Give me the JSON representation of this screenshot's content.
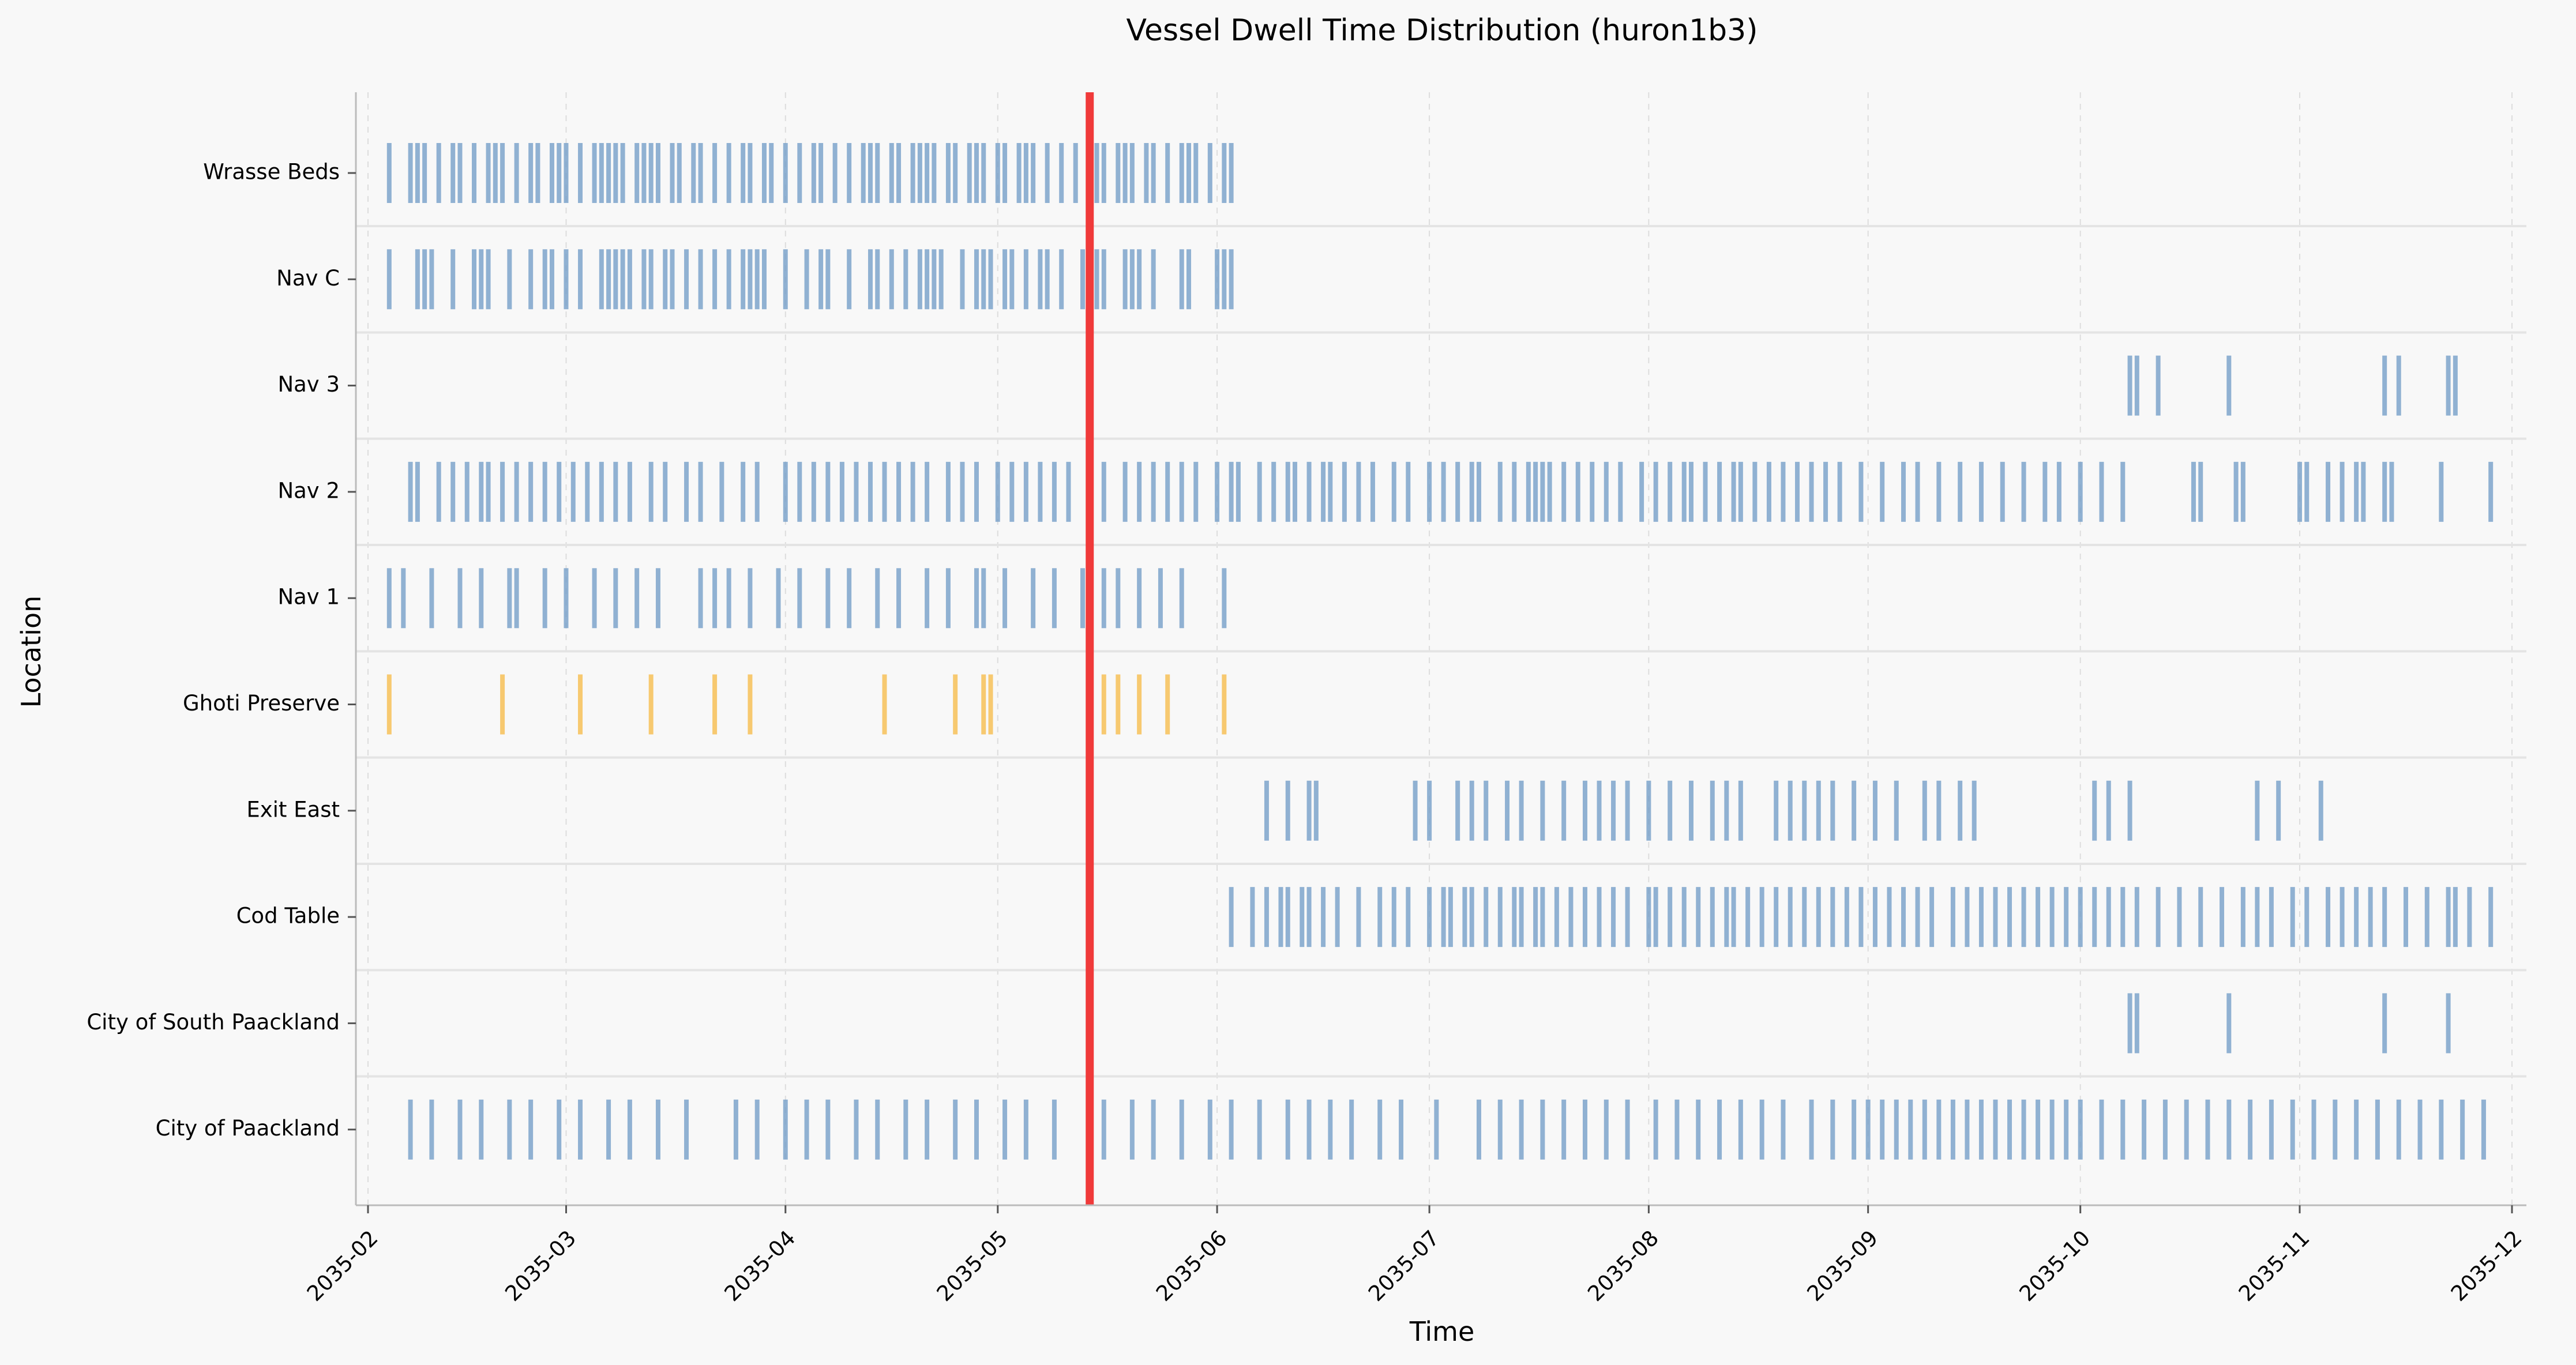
{
  "chart_data": {
    "type": "timeline",
    "title": "Vessel Dwell Time Distribution (huron1b3)",
    "xlabel": "Time",
    "ylabel": "Location",
    "x_ticks": [
      "2035-02",
      "2035-03",
      "2035-04",
      "2035-05",
      "2035-06",
      "2035-07",
      "2035-08",
      "2035-09",
      "2035-10",
      "2035-11",
      "2035-12"
    ],
    "xlim": [
      "2035-02-01",
      "2035-12-01"
    ],
    "grid": "x-dashed",
    "highlight_marker": {
      "date": "2035-05-14",
      "color": "#f03a3a"
    },
    "colors": {
      "normal": "#6e9ac6",
      "highlight": "#f7b943",
      "background": "#f8f8f8"
    },
    "categories": [
      "Wrasse Beds",
      "Nav C",
      "Nav 3",
      "Nav 2",
      "Nav 1",
      "Ghoti Preserve",
      "Exit East",
      "Cod Table",
      "City of South Paackland",
      "City of Paackland"
    ],
    "series": [
      {
        "name": "Wrasse Beds",
        "events": [
          "2035-02-04",
          "2035-02-07",
          "2035-02-08",
          "2035-02-09",
          "2035-02-11",
          "2035-02-13",
          "2035-02-14",
          "2035-02-16",
          "2035-02-18",
          "2035-02-19",
          "2035-02-20",
          "2035-02-22",
          "2035-02-24",
          "2035-02-25",
          "2035-02-27",
          "2035-02-28",
          "2035-03-01",
          "2035-03-03",
          "2035-03-05",
          "2035-03-06",
          "2035-03-07",
          "2035-03-08",
          "2035-03-09",
          "2035-03-11",
          "2035-03-12",
          "2035-03-13",
          "2035-03-14",
          "2035-03-16",
          "2035-03-17",
          "2035-03-19",
          "2035-03-20",
          "2035-03-22",
          "2035-03-24",
          "2035-03-26",
          "2035-03-27",
          "2035-03-29",
          "2035-03-30",
          "2035-04-01",
          "2035-04-03",
          "2035-04-05",
          "2035-04-06",
          "2035-04-08",
          "2035-04-10",
          "2035-04-12",
          "2035-04-13",
          "2035-04-14",
          "2035-04-16",
          "2035-04-17",
          "2035-04-19",
          "2035-04-20",
          "2035-04-21",
          "2035-04-22",
          "2035-04-24",
          "2035-04-25",
          "2035-04-27",
          "2035-04-28",
          "2035-04-29",
          "2035-05-01",
          "2035-05-02",
          "2035-05-04",
          "2035-05-05",
          "2035-05-06",
          "2035-05-08",
          "2035-05-10",
          "2035-05-12",
          "2035-05-14",
          "2035-05-15",
          "2035-05-16",
          "2035-05-18",
          "2035-05-19",
          "2035-05-20",
          "2035-05-22",
          "2035-05-23",
          "2035-05-25",
          "2035-05-27",
          "2035-05-28",
          "2035-05-29",
          "2035-05-31",
          "2035-06-02",
          "2035-06-03"
        ]
      },
      {
        "name": "Nav C",
        "events": [
          "2035-02-04",
          "2035-02-08",
          "2035-02-09",
          "2035-02-10",
          "2035-02-13",
          "2035-02-16",
          "2035-02-17",
          "2035-02-18",
          "2035-02-21",
          "2035-02-24",
          "2035-02-26",
          "2035-02-27",
          "2035-03-01",
          "2035-03-03",
          "2035-03-06",
          "2035-03-07",
          "2035-03-08",
          "2035-03-09",
          "2035-03-10",
          "2035-03-12",
          "2035-03-13",
          "2035-03-15",
          "2035-03-16",
          "2035-03-18",
          "2035-03-20",
          "2035-03-22",
          "2035-03-24",
          "2035-03-26",
          "2035-03-27",
          "2035-03-28",
          "2035-03-29",
          "2035-04-01",
          "2035-04-04",
          "2035-04-06",
          "2035-04-07",
          "2035-04-10",
          "2035-04-13",
          "2035-04-14",
          "2035-04-16",
          "2035-04-18",
          "2035-04-20",
          "2035-04-21",
          "2035-04-22",
          "2035-04-23",
          "2035-04-26",
          "2035-04-28",
          "2035-04-29",
          "2035-04-30",
          "2035-05-02",
          "2035-05-03",
          "2035-05-05",
          "2035-05-07",
          "2035-05-08",
          "2035-05-10",
          "2035-05-13",
          "2035-05-14",
          "2035-05-15",
          "2035-05-16",
          "2035-05-19",
          "2035-05-20",
          "2035-05-21",
          "2035-05-23",
          "2035-05-27",
          "2035-05-28",
          "2035-06-01",
          "2035-06-02",
          "2035-06-03"
        ]
      },
      {
        "name": "Nav 3",
        "events": [
          "2035-10-08",
          "2035-10-09",
          "2035-10-12",
          "2035-10-22",
          "2035-11-13",
          "2035-11-15",
          "2035-11-22",
          "2035-11-23"
        ]
      },
      {
        "name": "Nav 2",
        "events": [
          "2035-02-07",
          "2035-02-08",
          "2035-02-11",
          "2035-02-13",
          "2035-02-15",
          "2035-02-17",
          "2035-02-18",
          "2035-02-20",
          "2035-02-22",
          "2035-02-24",
          "2035-02-26",
          "2035-02-28",
          "2035-03-02",
          "2035-03-04",
          "2035-03-06",
          "2035-03-08",
          "2035-03-10",
          "2035-03-13",
          "2035-03-15",
          "2035-03-18",
          "2035-03-20",
          "2035-03-23",
          "2035-03-26",
          "2035-03-28",
          "2035-04-01",
          "2035-04-03",
          "2035-04-05",
          "2035-04-07",
          "2035-04-09",
          "2035-04-11",
          "2035-04-13",
          "2035-04-15",
          "2035-04-17",
          "2035-04-19",
          "2035-04-21",
          "2035-04-24",
          "2035-04-26",
          "2035-04-28",
          "2035-05-01",
          "2035-05-03",
          "2035-05-05",
          "2035-05-07",
          "2035-05-09",
          "2035-05-11",
          "2035-05-14",
          "2035-05-16",
          "2035-05-19",
          "2035-05-21",
          "2035-05-23",
          "2035-05-25",
          "2035-05-27",
          "2035-05-29",
          "2035-06-01",
          "2035-06-03",
          "2035-06-04",
          "2035-06-07",
          "2035-06-09",
          "2035-06-11",
          "2035-06-12",
          "2035-06-14",
          "2035-06-16",
          "2035-06-17",
          "2035-06-19",
          "2035-06-21",
          "2035-06-23",
          "2035-06-26",
          "2035-06-28",
          "2035-07-01",
          "2035-07-03",
          "2035-07-05",
          "2035-07-07",
          "2035-07-08",
          "2035-07-11",
          "2035-07-13",
          "2035-07-15",
          "2035-07-16",
          "2035-07-17",
          "2035-07-18",
          "2035-07-20",
          "2035-07-22",
          "2035-07-24",
          "2035-07-26",
          "2035-07-28",
          "2035-07-31",
          "2035-08-02",
          "2035-08-04",
          "2035-08-06",
          "2035-08-07",
          "2035-08-09",
          "2035-08-11",
          "2035-08-13",
          "2035-08-14",
          "2035-08-16",
          "2035-08-18",
          "2035-08-20",
          "2035-08-22",
          "2035-08-24",
          "2035-08-26",
          "2035-08-28",
          "2035-08-31",
          "2035-09-03",
          "2035-09-06",
          "2035-09-08",
          "2035-09-11",
          "2035-09-14",
          "2035-09-17",
          "2035-09-20",
          "2035-09-23",
          "2035-09-26",
          "2035-09-28",
          "2035-10-01",
          "2035-10-04",
          "2035-10-07",
          "2035-10-17",
          "2035-10-18",
          "2035-10-23",
          "2035-10-24",
          "2035-11-01",
          "2035-11-02",
          "2035-11-05",
          "2035-11-07",
          "2035-11-09",
          "2035-11-10",
          "2035-11-13",
          "2035-11-14",
          "2035-11-21",
          "2035-11-28"
        ]
      },
      {
        "name": "Nav 1",
        "events": [
          "2035-02-04",
          "2035-02-06",
          "2035-02-10",
          "2035-02-14",
          "2035-02-17",
          "2035-02-21",
          "2035-02-22",
          "2035-02-26",
          "2035-03-01",
          "2035-03-05",
          "2035-03-08",
          "2035-03-11",
          "2035-03-14",
          "2035-03-20",
          "2035-03-22",
          "2035-03-24",
          "2035-03-27",
          "2035-03-31",
          "2035-04-03",
          "2035-04-07",
          "2035-04-10",
          "2035-04-14",
          "2035-04-17",
          "2035-04-21",
          "2035-04-24",
          "2035-04-28",
          "2035-04-29",
          "2035-05-02",
          "2035-05-06",
          "2035-05-09",
          "2035-05-13",
          "2035-05-16",
          "2035-05-18",
          "2035-05-21",
          "2035-05-24",
          "2035-05-27",
          "2035-06-02"
        ]
      },
      {
        "name": "Ghoti Preserve",
        "highlight": true,
        "events": [
          "2035-02-04",
          "2035-02-20",
          "2035-03-03",
          "2035-03-13",
          "2035-03-22",
          "2035-03-27",
          "2035-04-15",
          "2035-04-25",
          "2035-04-29",
          "2035-04-30",
          "2035-05-16",
          "2035-05-18",
          "2035-05-21",
          "2035-05-25",
          "2035-06-02"
        ]
      },
      {
        "name": "Exit East",
        "events": [
          "2035-06-08",
          "2035-06-11",
          "2035-06-14",
          "2035-06-15",
          "2035-06-29",
          "2035-07-01",
          "2035-07-05",
          "2035-07-07",
          "2035-07-09",
          "2035-07-12",
          "2035-07-14",
          "2035-07-17",
          "2035-07-20",
          "2035-07-23",
          "2035-07-25",
          "2035-07-27",
          "2035-07-29",
          "2035-08-01",
          "2035-08-04",
          "2035-08-07",
          "2035-08-10",
          "2035-08-12",
          "2035-08-14",
          "2035-08-19",
          "2035-08-21",
          "2035-08-23",
          "2035-08-25",
          "2035-08-27",
          "2035-08-30",
          "2035-09-02",
          "2035-09-05",
          "2035-09-09",
          "2035-09-11",
          "2035-09-14",
          "2035-09-16",
          "2035-10-03",
          "2035-10-05",
          "2035-10-08",
          "2035-10-26",
          "2035-10-29",
          "2035-11-04"
        ]
      },
      {
        "name": "Cod Table",
        "events": [
          "2035-06-03",
          "2035-06-06",
          "2035-06-08",
          "2035-06-10",
          "2035-06-11",
          "2035-06-13",
          "2035-06-14",
          "2035-06-16",
          "2035-06-18",
          "2035-06-21",
          "2035-06-24",
          "2035-06-26",
          "2035-06-28",
          "2035-07-01",
          "2035-07-03",
          "2035-07-04",
          "2035-07-06",
          "2035-07-07",
          "2035-07-09",
          "2035-07-11",
          "2035-07-13",
          "2035-07-14",
          "2035-07-16",
          "2035-07-17",
          "2035-07-19",
          "2035-07-21",
          "2035-07-23",
          "2035-07-25",
          "2035-07-27",
          "2035-07-29",
          "2035-08-01",
          "2035-08-02",
          "2035-08-04",
          "2035-08-06",
          "2035-08-08",
          "2035-08-10",
          "2035-08-12",
          "2035-08-13",
          "2035-08-15",
          "2035-08-17",
          "2035-08-19",
          "2035-08-21",
          "2035-08-23",
          "2035-08-25",
          "2035-08-27",
          "2035-08-29",
          "2035-08-31",
          "2035-09-02",
          "2035-09-04",
          "2035-09-06",
          "2035-09-08",
          "2035-09-10",
          "2035-09-13",
          "2035-09-15",
          "2035-09-17",
          "2035-09-19",
          "2035-09-21",
          "2035-09-23",
          "2035-09-25",
          "2035-09-27",
          "2035-09-29",
          "2035-10-01",
          "2035-10-03",
          "2035-10-05",
          "2035-10-07",
          "2035-10-09",
          "2035-10-12",
          "2035-10-15",
          "2035-10-18",
          "2035-10-21",
          "2035-10-24",
          "2035-10-26",
          "2035-10-28",
          "2035-10-31",
          "2035-11-02",
          "2035-11-05",
          "2035-11-07",
          "2035-11-09",
          "2035-11-11",
          "2035-11-13",
          "2035-11-16",
          "2035-11-19",
          "2035-11-22",
          "2035-11-23",
          "2035-11-25",
          "2035-11-28"
        ]
      },
      {
        "name": "City of South Paackland",
        "events": [
          "2035-10-08",
          "2035-10-09",
          "2035-10-22",
          "2035-11-13",
          "2035-11-22"
        ]
      },
      {
        "name": "City of Paackland",
        "events": [
          "2035-02-07",
          "2035-02-10",
          "2035-02-14",
          "2035-02-17",
          "2035-02-21",
          "2035-02-24",
          "2035-02-28",
          "2035-03-03",
          "2035-03-07",
          "2035-03-10",
          "2035-03-14",
          "2035-03-18",
          "2035-03-25",
          "2035-03-28",
          "2035-04-01",
          "2035-04-04",
          "2035-04-07",
          "2035-04-11",
          "2035-04-14",
          "2035-04-18",
          "2035-04-21",
          "2035-04-25",
          "2035-04-28",
          "2035-05-02",
          "2035-05-05",
          "2035-05-09",
          "2035-05-14",
          "2035-05-16",
          "2035-05-20",
          "2035-05-23",
          "2035-05-27",
          "2035-05-31",
          "2035-06-03",
          "2035-06-07",
          "2035-06-11",
          "2035-06-14",
          "2035-06-17",
          "2035-06-20",
          "2035-06-24",
          "2035-06-27",
          "2035-07-02",
          "2035-07-08",
          "2035-07-11",
          "2035-07-14",
          "2035-07-17",
          "2035-07-20",
          "2035-07-23",
          "2035-07-26",
          "2035-07-29",
          "2035-08-02",
          "2035-08-05",
          "2035-08-08",
          "2035-08-11",
          "2035-08-14",
          "2035-08-17",
          "2035-08-20",
          "2035-08-24",
          "2035-08-27",
          "2035-08-30",
          "2035-09-01",
          "2035-09-03",
          "2035-09-05",
          "2035-09-07",
          "2035-09-09",
          "2035-09-11",
          "2035-09-13",
          "2035-09-15",
          "2035-09-17",
          "2035-09-19",
          "2035-09-21",
          "2035-09-23",
          "2035-09-25",
          "2035-09-27",
          "2035-09-29",
          "2035-10-01",
          "2035-10-04",
          "2035-10-07",
          "2035-10-10",
          "2035-10-13",
          "2035-10-16",
          "2035-10-19",
          "2035-10-22",
          "2035-10-25",
          "2035-10-28",
          "2035-10-31",
          "2035-11-03",
          "2035-11-06",
          "2035-11-09",
          "2035-11-12",
          "2035-11-15",
          "2035-11-18",
          "2035-11-21",
          "2035-11-24",
          "2035-11-27"
        ]
      }
    ]
  }
}
